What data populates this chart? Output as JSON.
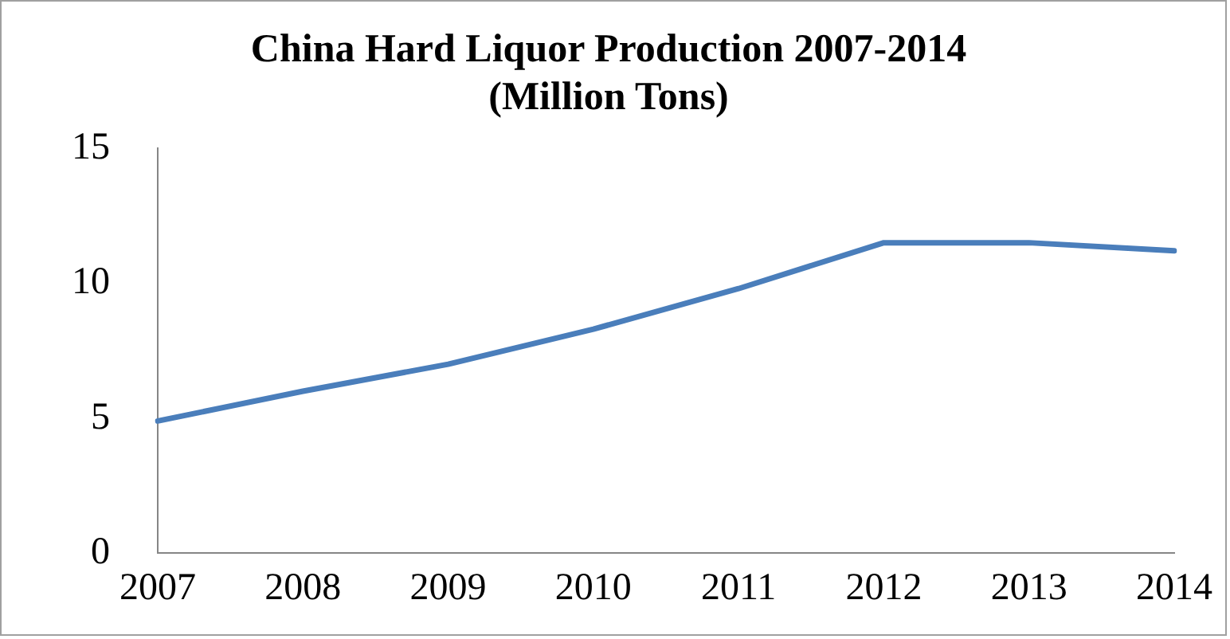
{
  "chart_data": {
    "type": "line",
    "title": [
      "China Hard Liquor Production 2007-2014",
      "(Million Tons)"
    ],
    "categories": [
      "2007",
      "2008",
      "2009",
      "2010",
      "2011",
      "2012",
      "2013",
      "2014"
    ],
    "series": [
      {
        "color": "#4a7ebb",
        "values": [
          4.9,
          6.0,
          7.0,
          8.3,
          9.8,
          11.5,
          11.5,
          11.2
        ]
      }
    ],
    "ylim": [
      0,
      15
    ],
    "yticks": [
      0,
      5,
      10,
      15
    ],
    "grid": false,
    "legend": false,
    "marker": "none",
    "line_style": "solid"
  }
}
